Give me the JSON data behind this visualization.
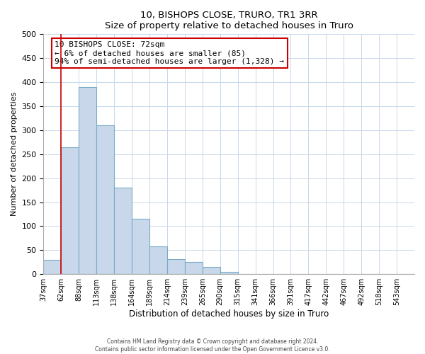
{
  "title": "10, BISHOPS CLOSE, TRURO, TR1 3RR",
  "subtitle": "Size of property relative to detached houses in Truro",
  "xlabel": "Distribution of detached houses by size in Truro",
  "ylabel": "Number of detached properties",
  "bar_values": [
    30,
    265,
    390,
    310,
    180,
    115,
    58,
    32,
    25,
    15,
    5,
    1,
    0,
    0,
    0,
    0,
    0,
    0,
    0,
    1,
    0
  ],
  "bar_color": "#c8d8ea",
  "bar_edge_color": "#7aaac8",
  "x_labels": [
    "37sqm",
    "62sqm",
    "88sqm",
    "113sqm",
    "138sqm",
    "164sqm",
    "189sqm",
    "214sqm",
    "239sqm",
    "265sqm",
    "290sqm",
    "315sqm",
    "341sqm",
    "366sqm",
    "391sqm",
    "417sqm",
    "442sqm",
    "467sqm",
    "492sqm",
    "518sqm",
    "543sqm"
  ],
  "ylim": [
    0,
    500
  ],
  "yticks": [
    0,
    50,
    100,
    150,
    200,
    250,
    300,
    350,
    400,
    450,
    500
  ],
  "red_line_x": 1.0,
  "annotation_text": "10 BISHOPS CLOSE: 72sqm\n← 6% of detached houses are smaller (85)\n94% of semi-detached houses are larger (1,328) →",
  "annotation_box_color": "#ffffff",
  "annotation_box_edge": "#cc0000",
  "annotation_text_color": "#000000",
  "red_line_color": "#cc0000",
  "grid_color": "#c8d8ea",
  "background_color": "#ffffff",
  "footer_line1": "Contains HM Land Registry data © Crown copyright and database right 2024.",
  "footer_line2": "Contains public sector information licensed under the Open Government Licence v3.0."
}
